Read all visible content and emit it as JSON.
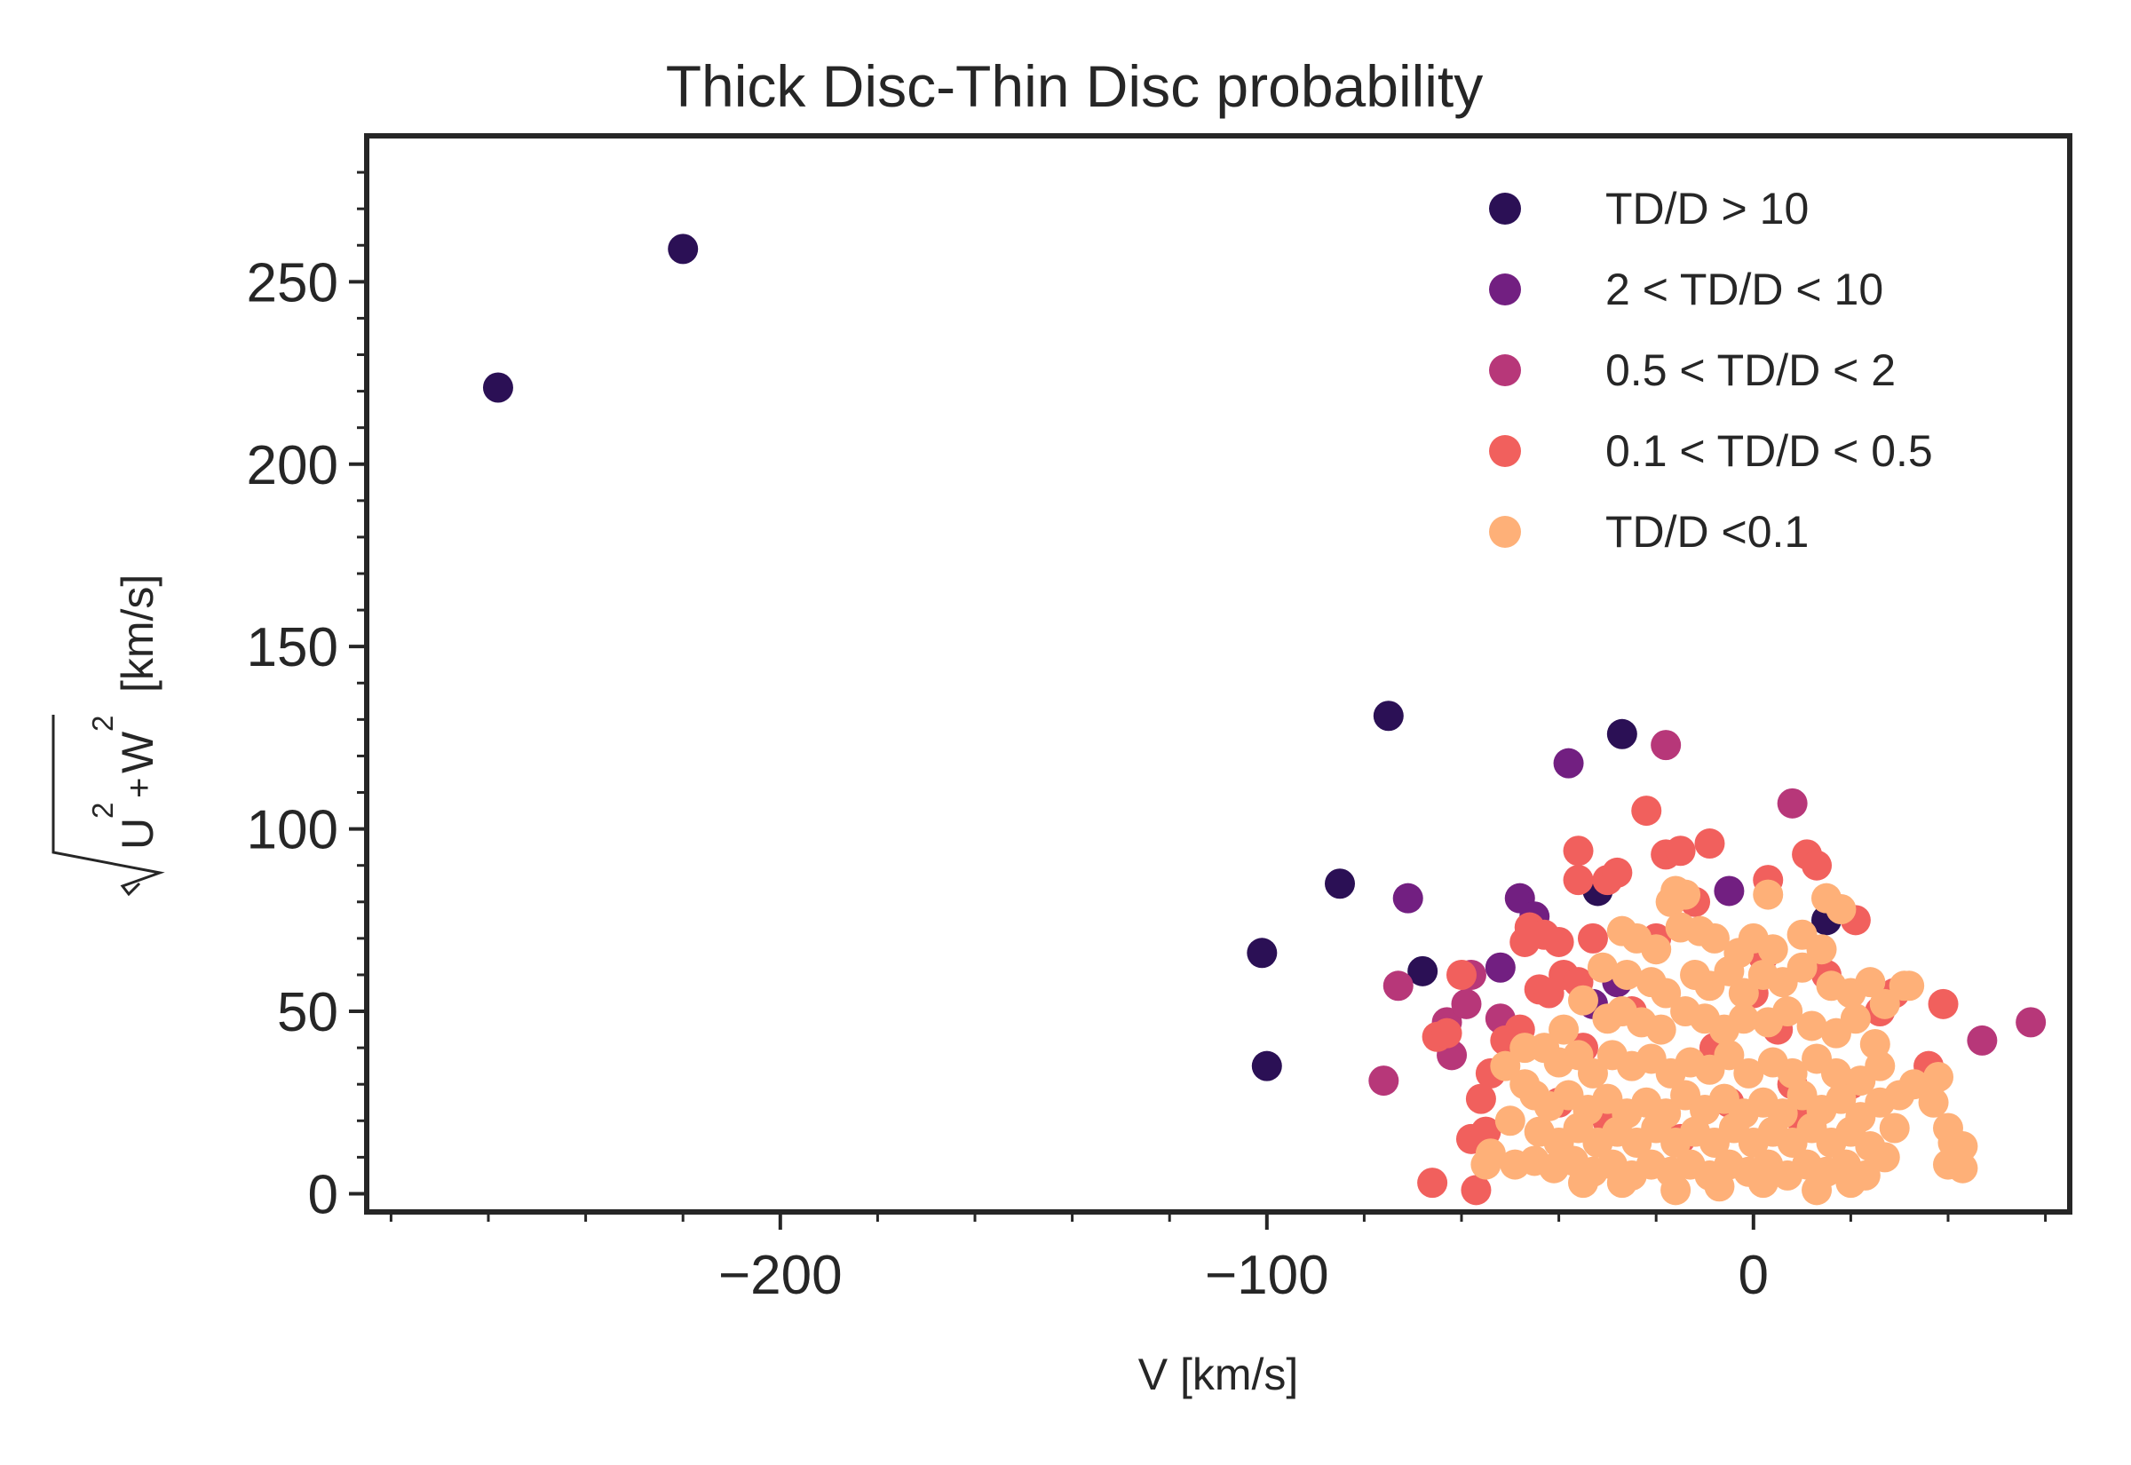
{
  "chart_data": {
    "type": "scatter",
    "title": "Thick Disc-Thin Disc probability",
    "xlabel": "V [km/s]",
    "ylabel": {
      "radical_terms": [
        "U",
        "2",
        "+",
        "W",
        "2"
      ],
      "unit": "[km/s]"
    },
    "xlim": [
      -285,
      65
    ],
    "ylim": [
      -5,
      290
    ],
    "x_ticks": [
      -200,
      -100,
      0
    ],
    "x_tick_labels": [
      "−200",
      "−100",
      "0"
    ],
    "y_ticks": [
      0,
      50,
      100,
      150,
      200,
      250
    ],
    "y_tick_labels": [
      "0",
      "50",
      "100",
      "150",
      "200",
      "250"
    ],
    "grid": false,
    "legend_position": "top-right",
    "series": [
      {
        "name": "TD/D > 10",
        "color": "#2b1055",
        "points": [
          [
            -258,
            221
          ],
          [
            -220,
            259
          ],
          [
            -75,
            131
          ],
          [
            -85,
            85
          ],
          [
            -101,
            66
          ],
          [
            -100,
            35
          ],
          [
            -68,
            61
          ],
          [
            -27,
            126
          ],
          [
            -32,
            83
          ],
          [
            15,
            75
          ]
        ]
      },
      {
        "name": "2 < TD/D < 10",
        "color": "#721f81",
        "points": [
          [
            -38,
            118
          ],
          [
            -71,
            81
          ],
          [
            -5,
            83
          ],
          [
            -48,
            81
          ],
          [
            -45,
            76
          ],
          [
            -28,
            58
          ],
          [
            -52,
            62
          ],
          [
            -33,
            52
          ]
        ]
      },
      {
        "name": "0.5 < TD/D < 2",
        "color": "#b73779",
        "points": [
          [
            -18,
            123
          ],
          [
            8,
            107
          ],
          [
            -73,
            57
          ],
          [
            -63,
            47
          ],
          [
            -62,
            38
          ],
          [
            -59,
            52
          ],
          [
            -58,
            60
          ],
          [
            -76,
            31
          ],
          [
            47,
            42
          ],
          [
            57,
            47
          ],
          [
            -52,
            48
          ]
        ]
      },
      {
        "name": "0.1 < TD/D < 0.5",
        "color": "#f1605d",
        "points": [
          [
            -22,
            105
          ],
          [
            -9,
            96
          ],
          [
            -36,
            94
          ],
          [
            -36,
            86
          ],
          [
            -30,
            86
          ],
          [
            -28,
            88
          ],
          [
            -18,
            93
          ],
          [
            -15,
            94
          ],
          [
            -12,
            80
          ],
          [
            3,
            86
          ],
          [
            11,
            93
          ],
          [
            13,
            90
          ],
          [
            21,
            75
          ],
          [
            -46,
            73
          ],
          [
            -43,
            71
          ],
          [
            -44,
            56
          ],
          [
            -47,
            69
          ],
          [
            -40,
            69
          ],
          [
            -33,
            70
          ],
          [
            -39,
            60
          ],
          [
            -36,
            58
          ],
          [
            -42,
            55
          ],
          [
            -48,
            45
          ],
          [
            -51,
            42
          ],
          [
            -54,
            33
          ],
          [
            -56,
            26
          ],
          [
            -58,
            15
          ],
          [
            -55,
            17
          ],
          [
            -60,
            60
          ],
          [
            -65,
            43
          ],
          [
            -63,
            44
          ],
          [
            -57,
            1
          ],
          [
            -66,
            3
          ],
          [
            -35,
            40
          ],
          [
            -25,
            50
          ],
          [
            -20,
            70
          ],
          [
            -8,
            40
          ],
          [
            0,
            55
          ],
          [
            10,
            20
          ],
          [
            20,
            30
          ],
          [
            26,
            50
          ],
          [
            29,
            55
          ],
          [
            36,
            35
          ],
          [
            39,
            52
          ],
          [
            42,
            10
          ],
          [
            -5,
            25
          ],
          [
            -15,
            15
          ],
          [
            5,
            45
          ],
          [
            15,
            60
          ],
          [
            -30,
            20
          ],
          [
            -40,
            25
          ],
          [
            2,
            65
          ],
          [
            8,
            30
          ]
        ]
      },
      {
        "name": "TD/D <0.1",
        "color": "#feb078",
        "points": [
          [
            -17,
            80
          ],
          [
            -16,
            83
          ],
          [
            -14,
            82
          ],
          [
            3,
            82
          ],
          [
            15,
            81
          ],
          [
            18,
            78
          ],
          [
            -27,
            72
          ],
          [
            -24,
            70
          ],
          [
            -20,
            67
          ],
          [
            -15,
            73
          ],
          [
            -11,
            72
          ],
          [
            -8,
            70
          ],
          [
            -3,
            66
          ],
          [
            0,
            70
          ],
          [
            4,
            67
          ],
          [
            10,
            71
          ],
          [
            14,
            67
          ],
          [
            -31,
            62
          ],
          [
            -26,
            60
          ],
          [
            -21,
            58
          ],
          [
            -18,
            55
          ],
          [
            -12,
            60
          ],
          [
            -9,
            57
          ],
          [
            -5,
            61
          ],
          [
            -2,
            55
          ],
          [
            2,
            60
          ],
          [
            6,
            58
          ],
          [
            10,
            62
          ],
          [
            16,
            57
          ],
          [
            20,
            55
          ],
          [
            24,
            58
          ],
          [
            27,
            52
          ],
          [
            32,
            57
          ],
          [
            -35,
            53
          ],
          [
            -30,
            48
          ],
          [
            -27,
            50
          ],
          [
            -23,
            47
          ],
          [
            -19,
            45
          ],
          [
            -14,
            50
          ],
          [
            -10,
            48
          ],
          [
            -6,
            45
          ],
          [
            -2,
            48
          ],
          [
            3,
            47
          ],
          [
            7,
            50
          ],
          [
            12,
            46
          ],
          [
            17,
            44
          ],
          [
            21,
            48
          ],
          [
            25,
            41
          ],
          [
            -43,
            40
          ],
          [
            -40,
            36
          ],
          [
            -36,
            38
          ],
          [
            -33,
            33
          ],
          [
            -29,
            38
          ],
          [
            -25,
            35
          ],
          [
            -21,
            37
          ],
          [
            -17,
            33
          ],
          [
            -13,
            36
          ],
          [
            -9,
            34
          ],
          [
            -5,
            38
          ],
          [
            -1,
            33
          ],
          [
            4,
            36
          ],
          [
            8,
            33
          ],
          [
            13,
            37
          ],
          [
            17,
            33
          ],
          [
            22,
            31
          ],
          [
            26,
            35
          ],
          [
            30,
            27
          ],
          [
            33,
            30
          ],
          [
            -51,
            35
          ],
          [
            -47,
            30
          ],
          [
            -45,
            27
          ],
          [
            -42,
            24
          ],
          [
            -38,
            27
          ],
          [
            -34,
            23
          ],
          [
            -30,
            26
          ],
          [
            -26,
            22
          ],
          [
            -22,
            25
          ],
          [
            -18,
            22
          ],
          [
            -14,
            27
          ],
          [
            -10,
            23
          ],
          [
            -6,
            26
          ],
          [
            -2,
            22
          ],
          [
            2,
            25
          ],
          [
            6,
            22
          ],
          [
            10,
            27
          ],
          [
            14,
            23
          ],
          [
            18,
            26
          ],
          [
            22,
            21
          ],
          [
            26,
            25
          ],
          [
            29,
            18
          ],
          [
            -44,
            17
          ],
          [
            -40,
            14
          ],
          [
            -36,
            18
          ],
          [
            -32,
            14
          ],
          [
            -28,
            17
          ],
          [
            -24,
            14
          ],
          [
            -20,
            18
          ],
          [
            -16,
            14
          ],
          [
            -12,
            17
          ],
          [
            -8,
            14
          ],
          [
            -4,
            18
          ],
          [
            0,
            14
          ],
          [
            4,
            17
          ],
          [
            8,
            14
          ],
          [
            12,
            18
          ],
          [
            16,
            14
          ],
          [
            20,
            17
          ],
          [
            24,
            13
          ],
          [
            27,
            10
          ],
          [
            -54,
            11
          ],
          [
            -55,
            8
          ],
          [
            -49,
            8
          ],
          [
            -45,
            9
          ],
          [
            -41,
            7
          ],
          [
            -37,
            9
          ],
          [
            -33,
            6
          ],
          [
            -29,
            8
          ],
          [
            -25,
            5
          ],
          [
            -21,
            8
          ],
          [
            -17,
            6
          ],
          [
            -13,
            8
          ],
          [
            -9,
            5
          ],
          [
            -5,
            8
          ],
          [
            -1,
            6
          ],
          [
            3,
            8
          ],
          [
            7,
            5
          ],
          [
            11,
            8
          ],
          [
            15,
            6
          ],
          [
            19,
            8
          ],
          [
            23,
            5
          ],
          [
            -35,
            3
          ],
          [
            -27,
            3
          ],
          [
            -16,
            1
          ],
          [
            -7,
            2
          ],
          [
            2,
            3
          ],
          [
            13,
            1
          ],
          [
            20,
            3
          ],
          [
            40,
            18
          ],
          [
            41,
            14
          ],
          [
            40,
            8
          ],
          [
            43,
            7
          ],
          [
            43,
            13
          ],
          [
            38,
            32
          ],
          [
            37,
            25
          ],
          [
            31,
            57
          ],
          [
            -47,
            40
          ],
          [
            -50,
            20
          ],
          [
            -39,
            45
          ]
        ]
      }
    ]
  }
}
